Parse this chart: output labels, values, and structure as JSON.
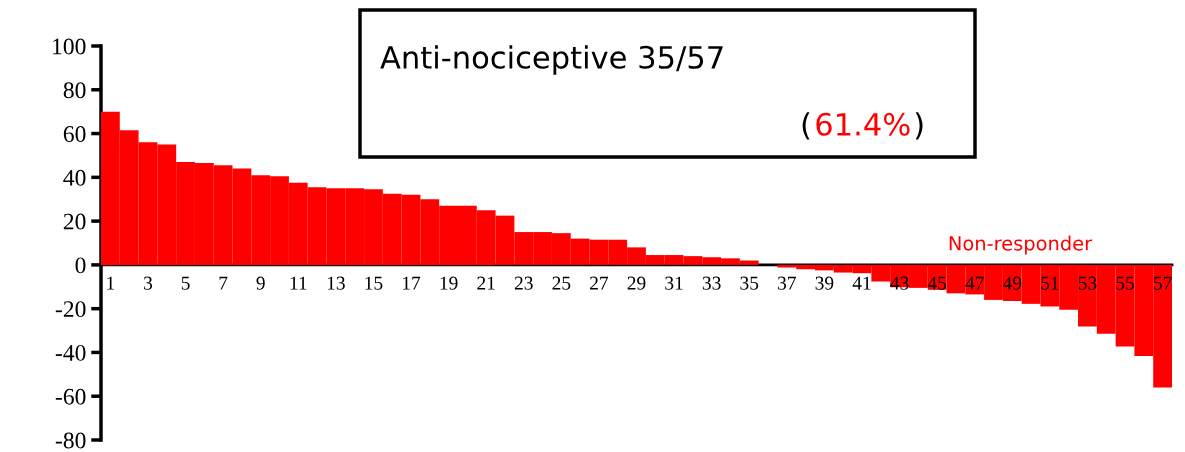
{
  "chart_data": {
    "type": "bar",
    "categories": [
      "1",
      null,
      "3",
      null,
      "5",
      null,
      "7",
      null,
      "9",
      null,
      "11",
      null,
      "13",
      null,
      "15",
      null,
      "17",
      null,
      "19",
      null,
      "21",
      null,
      "23",
      null,
      "25",
      null,
      "27",
      null,
      "29",
      null,
      "31",
      null,
      "33",
      null,
      "35",
      null,
      "37",
      null,
      "39",
      null,
      "41",
      null,
      "43",
      null,
      "45",
      null,
      "47",
      null,
      "49",
      null,
      "51",
      null,
      "53",
      null,
      "55",
      null,
      "57"
    ],
    "values": [
      70,
      61.5,
      56,
      55,
      47,
      46.5,
      45.5,
      44,
      41,
      40.5,
      37.5,
      35.5,
      35,
      35,
      34.5,
      32.5,
      32,
      30,
      27,
      27,
      25,
      22.5,
      15,
      15,
      14.5,
      12,
      11.5,
      11.5,
      8,
      4.5,
      4.5,
      4,
      3.5,
      3,
      2,
      null,
      -1.2,
      -2,
      -2.5,
      -3.5,
      -3.8,
      -7.6,
      -10.2,
      -10.5,
      -11.4,
      -13,
      -13.5,
      -16,
      -16.5,
      -17.8,
      -19,
      -20.5,
      -28.2,
      -31.5,
      -37.3,
      -41.6,
      -56
    ],
    "color": "#ff0000",
    "ylim": [
      -80,
      100
    ],
    "yticks": [
      -80,
      -60,
      -40,
      -20,
      0,
      20,
      40,
      60,
      80,
      100
    ],
    "grid": false,
    "annotations": [
      "Anti-nociceptive 35/57",
      "(",
      "61.4%",
      ")",
      "Non-responder"
    ]
  }
}
